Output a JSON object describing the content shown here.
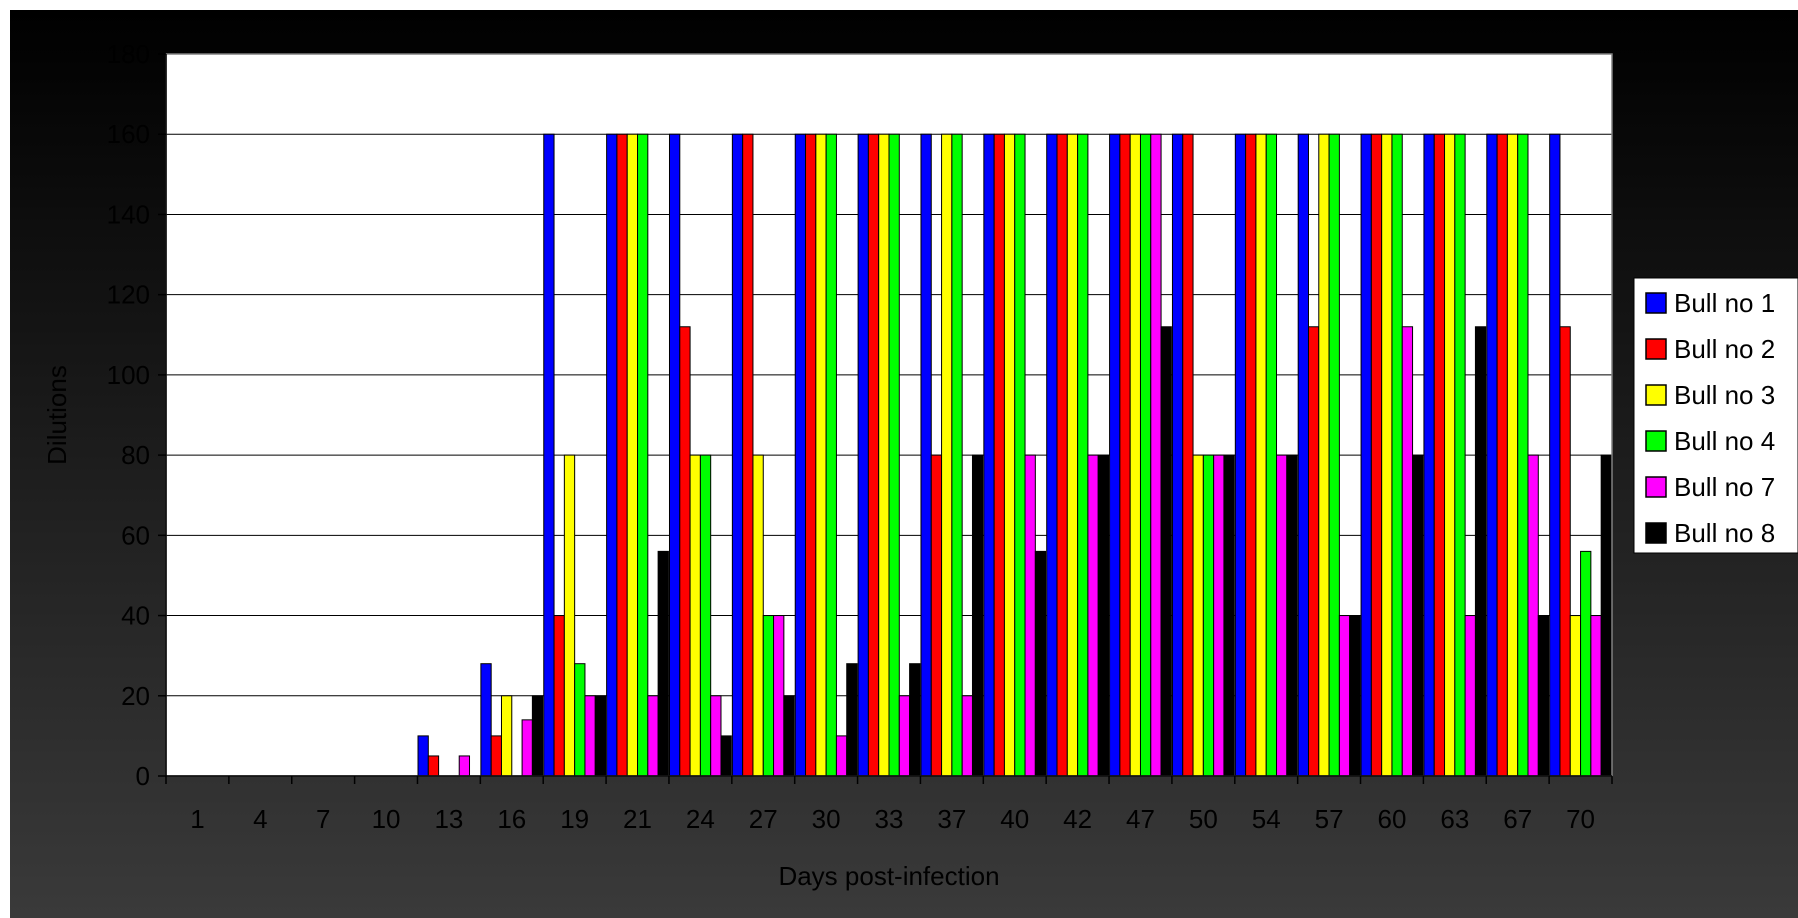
{
  "chart_data": {
    "type": "bar",
    "title": "",
    "xlabel": "Days post-infection",
    "ylabel": "Dilutions",
    "ylim": [
      0,
      180
    ],
    "yticks": [
      0,
      20,
      40,
      60,
      80,
      100,
      120,
      140,
      160,
      180
    ],
    "grid": true,
    "legend_position": "right",
    "categories": [
      "1",
      "4",
      "7",
      "10",
      "13",
      "16",
      "19",
      "21",
      "24",
      "27",
      "30",
      "33",
      "37",
      "40",
      "42",
      "47",
      "50",
      "54",
      "57",
      "60",
      "63",
      "67",
      "70"
    ],
    "series": [
      {
        "name": "Bull no 1",
        "color": "#0000FF",
        "values": [
          0,
          0,
          0,
          0,
          10,
          28,
          160,
          160,
          160,
          160,
          160,
          160,
          160,
          160,
          160,
          160,
          160,
          160,
          160,
          160,
          160,
          160,
          160
        ]
      },
      {
        "name": "Bull no 2",
        "color": "#FF0000",
        "values": [
          0,
          0,
          0,
          0,
          5,
          10,
          40,
          160,
          112,
          160,
          160,
          160,
          80,
          160,
          160,
          160,
          160,
          160,
          112,
          160,
          160,
          160,
          112
        ]
      },
      {
        "name": "Bull no 3",
        "color": "#FFFF00",
        "values": [
          0,
          0,
          0,
          0,
          0,
          20,
          80,
          160,
          80,
          80,
          160,
          160,
          160,
          160,
          160,
          160,
          80,
          160,
          160,
          160,
          160,
          160,
          40
        ]
      },
      {
        "name": "Bull no 4",
        "color": "#00FF00",
        "values": [
          0,
          0,
          0,
          0,
          0,
          0,
          28,
          160,
          80,
          40,
          160,
          160,
          160,
          160,
          160,
          160,
          80,
          160,
          160,
          160,
          160,
          160,
          56
        ]
      },
      {
        "name": "Bull no 7",
        "color": "#FF00FF",
        "values": [
          0,
          0,
          0,
          0,
          5,
          14,
          20,
          20,
          20,
          40,
          10,
          20,
          20,
          80,
          80,
          160,
          80,
          80,
          40,
          112,
          40,
          80,
          40
        ]
      },
      {
        "name": "Bull no 8",
        "color": "#000000",
        "values": [
          0,
          0,
          0,
          0,
          0,
          20,
          20,
          56,
          10,
          20,
          28,
          28,
          80,
          56,
          80,
          112,
          80,
          80,
          40,
          80,
          112,
          40,
          80
        ]
      }
    ]
  }
}
